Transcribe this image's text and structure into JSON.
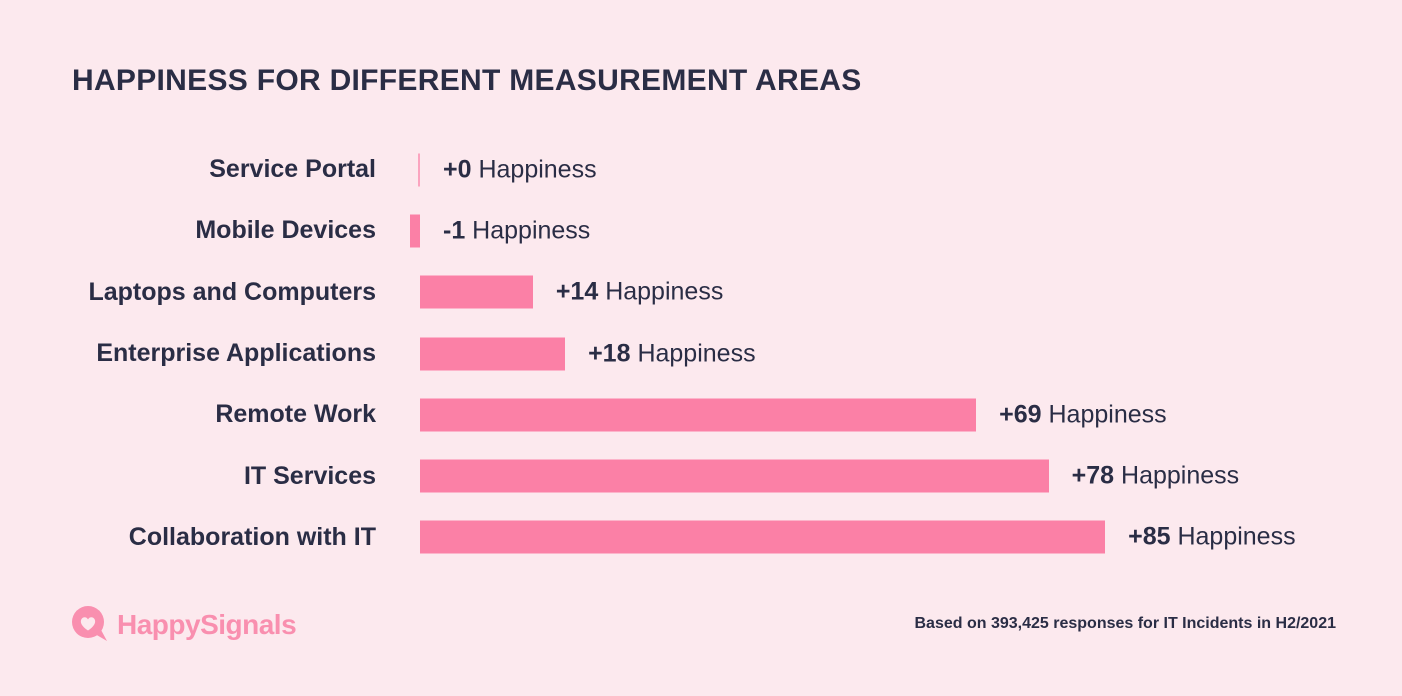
{
  "chart_data": {
    "type": "bar",
    "orientation": "horizontal",
    "title": "HAPPINESS FOR DIFFERENT MEASUREMENT AREAS",
    "unit": "Happiness",
    "categories": [
      "Service Portal",
      "Mobile Devices",
      "Laptops and Computers",
      "Enterprise Applications",
      "Remote Work",
      "IT Services",
      "Collaboration with IT"
    ],
    "values": [
      0,
      -1,
      14,
      18,
      69,
      78,
      85
    ],
    "value_display": [
      "+0",
      "-1",
      "+14",
      "+18",
      "+69",
      "+78",
      "+85"
    ],
    "xlabel": "",
    "ylabel": "",
    "xlim": [
      -1,
      100
    ],
    "gridlines": false,
    "legend": false,
    "bar_color": "#FB80A6"
  },
  "footer": {
    "logo_text": "HappySignals",
    "note": "Based on 393,425 responses for IT Incidents in H2/2021"
  },
  "colors": {
    "background": "#FCE9EE",
    "bar": "#FB80A6",
    "text": "#2A2D45",
    "logo_pink": "#F98FAF"
  }
}
